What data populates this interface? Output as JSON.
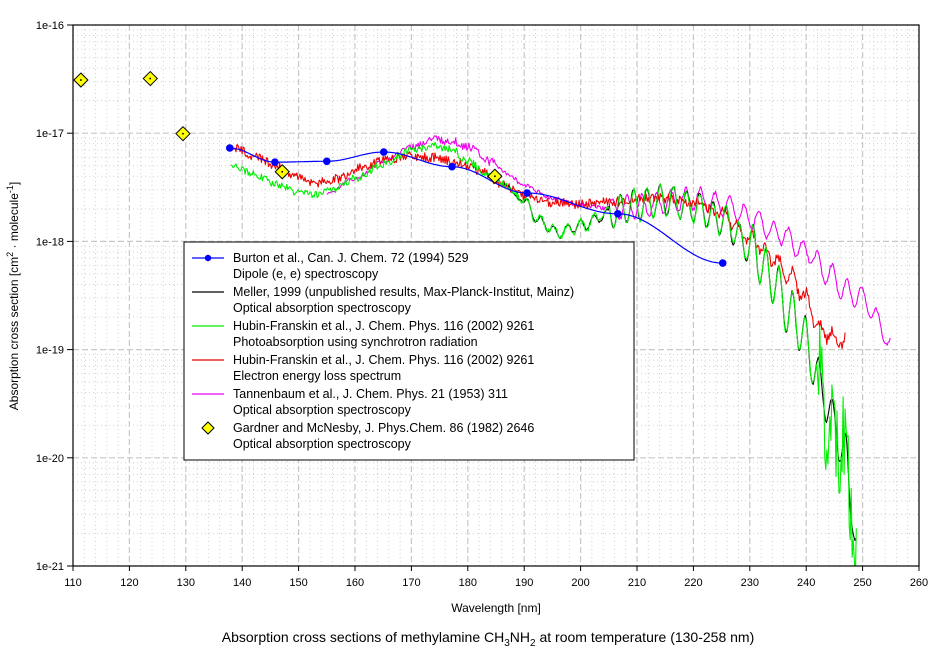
{
  "chart_data": {
    "type": "line",
    "title": "Absorption cross sections of methylamine CH3NH2 at room temperature (130-258 nm)",
    "title_parts": {
      "prefix": "Absorption cross sections of methylamine CH",
      "sub1": "3",
      "mid": "NH",
      "sub2": "2",
      "suffix": " at room temperature (130-258 nm)"
    },
    "xlabel": "Wavelength [nm]",
    "ylabel_parts": {
      "prefix": "Absorption cross section [cm",
      "sup1": "2",
      "mid": " · molecule",
      "sup2": "-1",
      "suffix": "]"
    },
    "xlim": [
      110,
      260
    ],
    "ylim": [
      1e-21,
      1e-16
    ],
    "yscale": "log",
    "grid": true,
    "legend_position": "center-left",
    "x_ticks": [
      "110",
      "120",
      "130",
      "140",
      "150",
      "160",
      "170",
      "180",
      "190",
      "200",
      "210",
      "220",
      "230",
      "240",
      "250",
      "260"
    ],
    "y_ticks": [
      "1e-16",
      "1e-17",
      "1e-18",
      "1e-19",
      "1e-20",
      "1e-21"
    ],
    "series": [
      {
        "name": "Burton et al., Can. J. Chem. 72 (1994) 529",
        "subtitle": "Dipole (e, e) spectroscopy",
        "color": "#0000ff",
        "marker": "circle",
        "style": "smooth-line",
        "x": [
          137.8,
          145.8,
          155.0,
          165.1,
          177.2,
          190.5,
          206.6,
          225.2
        ],
        "y": [
          7.3e-18,
          5.4e-18,
          5.5e-18,
          6.7e-18,
          4.9e-18,
          2.8e-18,
          1.8e-18,
          6.3e-19
        ]
      },
      {
        "name": "Meller, 1999 (unpublished results, Max-Planck-Institut, Mainz)",
        "subtitle": "Optical absorption spectroscopy",
        "color": "#000000",
        "marker": "none",
        "style": "line",
        "x": [
          186,
          190,
          193,
          196,
          200,
          205,
          210,
          215,
          220,
          225,
          230,
          234,
          237,
          239,
          241,
          243,
          245,
          247,
          248,
          249
        ],
        "y": [
          3.5e-18,
          2.3e-18,
          1.5e-18,
          1.2e-18,
          1.4e-18,
          1.8e-18,
          2.2e-18,
          2.4e-18,
          2.1e-18,
          1.6e-18,
          9e-19,
          4.5e-19,
          2.2e-19,
          1.6e-19,
          8e-20,
          4e-20,
          2e-20,
          1e-20,
          4e-21,
          1.5e-21
        ]
      },
      {
        "name": "Hubin-Franskin et al., J. Chem. Phys. 116 (2002) 9261",
        "subtitle": "Photoabsorption using synchrotron radiation",
        "color": "#00ee00",
        "marker": "none",
        "style": "line",
        "x": [
          138,
          142,
          146,
          150,
          153,
          156,
          160,
          165,
          170,
          174,
          177,
          180,
          184,
          187,
          190,
          193,
          196,
          200,
          205,
          210,
          215,
          220,
          225,
          230,
          234,
          237,
          239,
          241,
          243,
          245,
          247,
          248,
          249
        ],
        "y": [
          5.2e-18,
          4.2e-18,
          3.4e-18,
          2.8e-18,
          2.7e-18,
          3e-18,
          3.8e-18,
          5.2e-18,
          7e-18,
          7.6e-18,
          7.2e-18,
          5.5e-18,
          4e-18,
          3.3e-18,
          2.3e-18,
          1.5e-18,
          1.2e-18,
          1.4e-18,
          1.8e-18,
          2.2e-18,
          2.4e-18,
          2.1e-18,
          1.6e-18,
          9e-19,
          4.5e-19,
          2.2e-19,
          1.6e-19,
          8e-20,
          4e-20,
          2e-20,
          1e-20,
          3e-21,
          1.2e-21
        ]
      },
      {
        "name": "Hubin-Franskin et al., J. Chem. Phys. 116 (2002) 9261",
        "subtitle": "Electron energy loss spectrum",
        "color": "#ee0000",
        "marker": "none",
        "style": "line",
        "x": [
          138,
          142,
          146,
          150,
          153,
          157,
          161,
          165,
          170,
          174,
          178,
          182,
          186,
          190,
          195,
          200,
          205,
          210,
          215,
          220,
          225,
          230,
          234,
          237,
          240,
          242,
          244,
          246,
          247
        ],
        "y": [
          7.5e-18,
          6.2e-18,
          5e-18,
          3.9e-18,
          3.5e-18,
          3.8e-18,
          4.8e-18,
          5.6e-18,
          6.2e-18,
          6e-18,
          5.4e-18,
          4.6e-18,
          3.4e-18,
          2.6e-18,
          2.3e-18,
          2.2e-18,
          2.3e-18,
          2.5e-18,
          2.5e-18,
          2.3e-18,
          1.8e-18,
          1.1e-18,
          7e-19,
          5e-19,
          3e-19,
          1.6e-19,
          1.4e-19,
          1.2e-19,
          1.2e-19
        ]
      },
      {
        "name": "Tannenbaum et al., J. Chem. Phys. 21 (1953) 311",
        "subtitle": "Optical absorption spectroscopy",
        "color": "#ee00ee",
        "marker": "none",
        "style": "line",
        "x": [
          155,
          160,
          165,
          170,
          174,
          177,
          180,
          184,
          187,
          190,
          195,
          200,
          205,
          210,
          215,
          220,
          225,
          230,
          235,
          240,
          244,
          247,
          250,
          253,
          255
        ],
        "y": [
          2.8e-18,
          3.8e-18,
          5.5e-18,
          7.5e-18,
          8.8e-18,
          8.5e-18,
          7.5e-18,
          5.5e-18,
          4.2e-18,
          3.3e-18,
          2.5e-18,
          2.2e-18,
          2e-18,
          2.1e-18,
          2.3e-18,
          2.5e-18,
          2.2e-18,
          1.7e-18,
          1.2e-18,
          8e-19,
          5e-19,
          3.5e-19,
          3e-19,
          1.8e-19,
          1e-19
        ]
      },
      {
        "name": "Gardner and McNesby, J. Phys.Chem. 86 (1982) 2646",
        "subtitle": "Optical absorption spectroscopy",
        "color": "#ffff00",
        "marker": "diamond",
        "style": "markers",
        "x": [
          111.4,
          123.7,
          129.5,
          147.1,
          184.8
        ],
        "y": [
          3.1e-17,
          3.2e-17,
          9.9e-18,
          4.4e-18,
          4e-18
        ]
      }
    ]
  }
}
